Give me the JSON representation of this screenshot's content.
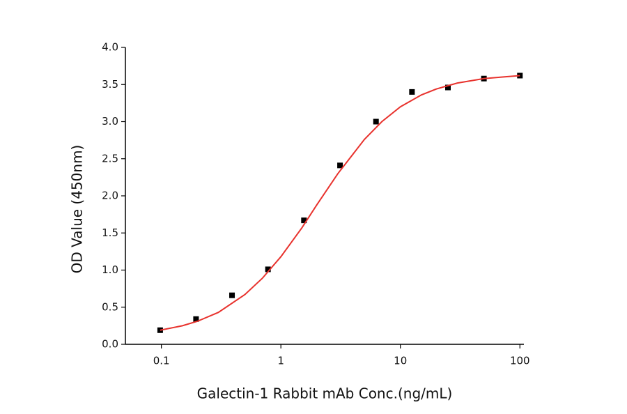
{
  "chart_data": {
    "type": "scatter",
    "x_label": "Galectin-1 Rabbit mAb Conc.(ng/mL)",
    "y_label": "OD Value (450nm)",
    "x_scale": "log",
    "xlim": [
      0.05,
      108
    ],
    "xticks": [
      0.1,
      1,
      10,
      100
    ],
    "ylim": [
      0,
      4.0
    ],
    "yticks": [
      {
        "value": 0,
        "label": "0.0"
      },
      {
        "value": 0.5,
        "label": "0.5"
      },
      {
        "value": 1,
        "label": "1.0"
      },
      {
        "value": 1.5,
        "label": "1.5"
      },
      {
        "value": 2,
        "label": "2.0"
      },
      {
        "value": 2.5,
        "label": "2.5"
      },
      {
        "value": 3,
        "label": "3.0"
      },
      {
        "value": 3.5,
        "label": "3.5"
      },
      {
        "value": 4,
        "label": "4.0"
      }
    ],
    "grid": false,
    "series": [
      {
        "color": "#000000",
        "marker": "square",
        "x": [
          0.0977,
          0.195,
          0.39,
          0.78,
          1.56,
          3.125,
          6.25,
          12.5,
          25,
          50,
          100
        ],
        "values": [
          0.19,
          0.34,
          0.66,
          1.01,
          1.67,
          2.41,
          3.0,
          3.4,
          3.46,
          3.58,
          3.62
        ]
      },
      {
        "color": "#e8322d",
        "marker": "line",
        "x": [
          0.0977,
          0.15,
          0.2,
          0.3,
          0.5,
          0.7,
          1,
          1.5,
          2,
          3,
          5,
          7,
          10,
          15,
          20,
          30,
          50,
          70,
          100
        ],
        "values": [
          0.19,
          0.25,
          0.31,
          0.43,
          0.67,
          0.89,
          1.18,
          1.57,
          1.88,
          2.3,
          2.76,
          3.0,
          3.2,
          3.36,
          3.44,
          3.52,
          3.58,
          3.6,
          3.62
        ]
      }
    ]
  }
}
